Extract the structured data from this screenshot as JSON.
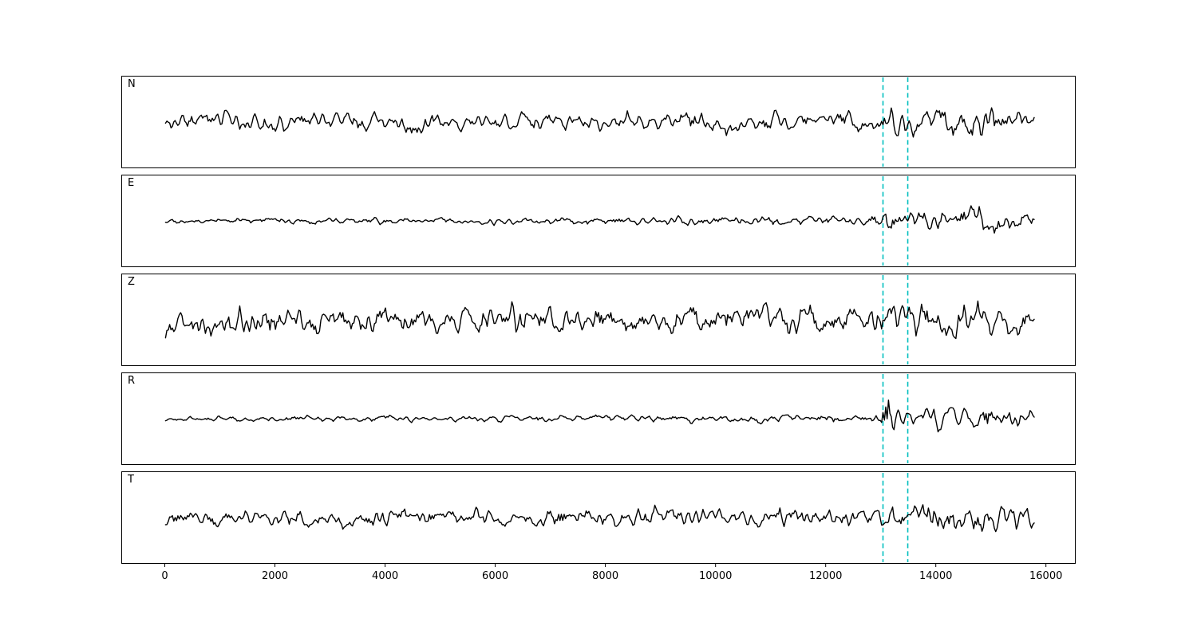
{
  "figure": {
    "background": "#ffffff",
    "description": "Five stacked seismogram traces (components N, E, Z, R, T) with two dashed cyan event-window markers"
  },
  "chart_data": {
    "type": "line",
    "title": "",
    "xlabel": "",
    "ylabel": "",
    "grid": false,
    "legend": null,
    "xlim": [
      -790,
      16540
    ],
    "xticks": [
      0,
      2000,
      4000,
      6000,
      8000,
      10000,
      12000,
      14000,
      16000
    ],
    "xtick_labels": [
      "0",
      "2000",
      "4000",
      "6000",
      "8000",
      "10000",
      "12000",
      "14000",
      "16000"
    ],
    "x_start": 0,
    "x_end": 15800,
    "sample_step": 25,
    "line_color": "#000000",
    "line_width": 1.4,
    "axis_color": "#000000",
    "event_markers": {
      "x": [
        13050,
        13500
      ],
      "color": "#00bfbf",
      "style": "dashed"
    },
    "panels": [
      {
        "label": "N",
        "seed": 3,
        "envelope": [
          [
            0,
            1.1
          ],
          [
            5000,
            1.15
          ],
          [
            12800,
            1.1
          ],
          [
            13050,
            1.8
          ],
          [
            13250,
            2.1
          ],
          [
            13500,
            1.5
          ],
          [
            13900,
            1.4
          ],
          [
            14400,
            2.2
          ],
          [
            14800,
            2.4
          ],
          [
            15300,
            2.0
          ],
          [
            15800,
            1.4
          ]
        ]
      },
      {
        "label": "E",
        "seed": 14,
        "envelope": [
          [
            0,
            0.35
          ],
          [
            4000,
            0.4
          ],
          [
            9000,
            0.5
          ],
          [
            12800,
            0.55
          ],
          [
            13000,
            1.2
          ],
          [
            13120,
            2.9
          ],
          [
            13300,
            2.2
          ],
          [
            13550,
            1.1
          ],
          [
            14000,
            1.4
          ],
          [
            14700,
            1.6
          ],
          [
            15300,
            1.5
          ],
          [
            15800,
            1.0
          ]
        ]
      },
      {
        "label": "Z",
        "seed": 27,
        "envelope": [
          [
            0,
            1.7
          ],
          [
            1000,
            2.0
          ],
          [
            2500,
            1.6
          ],
          [
            4000,
            1.5
          ],
          [
            6000,
            2.0
          ],
          [
            8000,
            1.8
          ],
          [
            10000,
            1.7
          ],
          [
            12800,
            1.8
          ],
          [
            13100,
            2.3
          ],
          [
            14000,
            2.1
          ],
          [
            14700,
            2.3
          ],
          [
            15300,
            2.0
          ],
          [
            15800,
            1.4
          ]
        ]
      },
      {
        "label": "R",
        "seed": 8,
        "envelope": [
          [
            0,
            0.3
          ],
          [
            5000,
            0.4
          ],
          [
            10000,
            0.45
          ],
          [
            12800,
            0.5
          ],
          [
            13000,
            1.5
          ],
          [
            13120,
            3.4
          ],
          [
            13280,
            2.5
          ],
          [
            13500,
            1.2
          ],
          [
            14000,
            1.5
          ],
          [
            14800,
            1.6
          ],
          [
            15400,
            1.4
          ],
          [
            15800,
            1.0
          ]
        ]
      },
      {
        "label": "T",
        "seed": 51,
        "envelope": [
          [
            0,
            1.05
          ],
          [
            3000,
            1.15
          ],
          [
            6000,
            1.05
          ],
          [
            9000,
            1.15
          ],
          [
            12800,
            1.15
          ],
          [
            13100,
            1.9
          ],
          [
            13500,
            1.6
          ],
          [
            14200,
            1.8
          ],
          [
            14900,
            2.0
          ],
          [
            15400,
            2.1
          ],
          [
            15800,
            1.3
          ]
        ]
      }
    ]
  }
}
